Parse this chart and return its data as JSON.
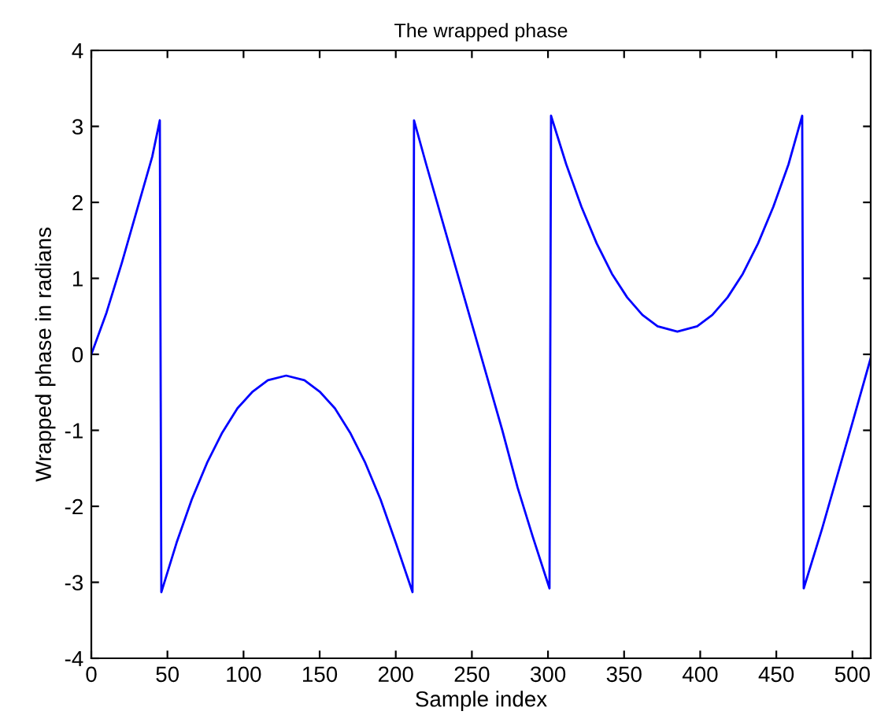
{
  "chart_data": {
    "type": "line",
    "title": "The wrapped phase",
    "xlabel": "Sample index",
    "ylabel": "Wrapped phase in radians",
    "series": [
      {
        "color": "#0000ff",
        "x": [
          0,
          10,
          20,
          30,
          40,
          45,
          46,
          56,
          66,
          76,
          86,
          96,
          106,
          116,
          128,
          140,
          150,
          160,
          170,
          180,
          190,
          200,
          211,
          212,
          220,
          230,
          240,
          250,
          260,
          270,
          280,
          290,
          301,
          302,
          312,
          322,
          332,
          342,
          352,
          362,
          372,
          385,
          398,
          408,
          418,
          428,
          438,
          448,
          458,
          467,
          468,
          480,
          490,
          500,
          512
        ],
        "values": [
          0,
          0.55,
          1.2,
          1.9,
          2.6,
          3.08,
          -3.13,
          -2.48,
          -1.91,
          -1.43,
          -1.03,
          -0.71,
          -0.49,
          -0.34,
          -0.28,
          -0.34,
          -0.49,
          -0.71,
          -1.03,
          -1.43,
          -1.91,
          -2.48,
          -3.13,
          3.08,
          2.5,
          1.8,
          1.1,
          0.4,
          -0.3,
          -1.0,
          -1.75,
          -2.4,
          -3.08,
          3.14,
          2.5,
          1.94,
          1.46,
          1.06,
          0.75,
          0.52,
          0.37,
          0.3,
          0.37,
          0.52,
          0.75,
          1.06,
          1.46,
          1.94,
          2.5,
          3.14,
          -3.08,
          -2.3,
          -1.6,
          -0.9,
          -0.05
        ]
      }
    ],
    "xlim": [
      0,
      512
    ],
    "xticks": [
      0,
      50,
      100,
      150,
      200,
      250,
      300,
      350,
      400,
      450,
      500
    ],
    "ylim": [
      -4,
      4
    ],
    "yticks": [
      -4,
      -3,
      -2,
      -1,
      0,
      1,
      2,
      3,
      4
    ],
    "grid": false,
    "legend": false
  }
}
